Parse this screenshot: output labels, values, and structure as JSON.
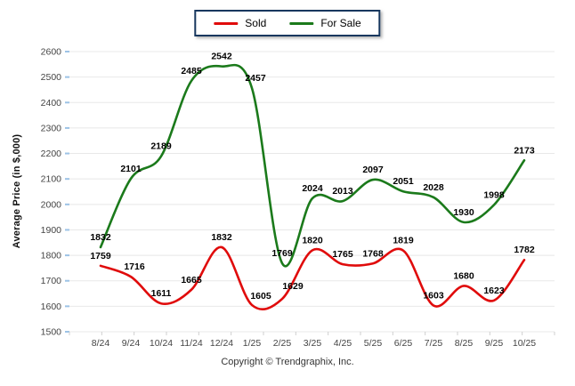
{
  "y_axis_title": "Average Price (in $,000)",
  "footer_text": "Copyright © Trendgraphix, Inc.",
  "colors": {
    "sold_line": "#e00b0b",
    "for_sale_line": "#1b7a1b",
    "legend_border": "#17375e",
    "gridline": "#e8e8e8",
    "y_tick": "#9dc3e6",
    "x_tick": "#cfcfcf",
    "axis_text": "#444444",
    "data_label_text": "#000000"
  },
  "chart_data": {
    "type": "line",
    "title": "",
    "xlabel": "",
    "ylabel": "Average Price (in $,000)",
    "categories": [
      "8/24",
      "9/24",
      "10/24",
      "11/24",
      "12/24",
      "1/25",
      "2/25",
      "3/25",
      "4/25",
      "5/25",
      "6/25",
      "7/25",
      "8/25",
      "9/25",
      "10/25"
    ],
    "series": [
      {
        "name": "Sold",
        "color": "#e00b0b",
        "values": [
          1759,
          1716,
          1611,
          1665,
          1832,
          1605,
          1629,
          1820,
          1765,
          1768,
          1819,
          1603,
          1680,
          1623,
          1782
        ]
      },
      {
        "name": "For Sale",
        "color": "#1b7a1b",
        "values": [
          1832,
          2101,
          2189,
          2485,
          2542,
          2457,
          1769,
          2024,
          2013,
          2097,
          2051,
          2028,
          1930,
          1998,
          2173
        ]
      }
    ],
    "ylim": [
      1500,
      2600
    ],
    "ytick_step": 100,
    "yticks": [
      1500,
      1600,
      1700,
      1800,
      1900,
      2000,
      2100,
      2200,
      2300,
      2400,
      2500,
      2600
    ],
    "grid": "horizontal",
    "legend_position": "top-center",
    "data_labels": true,
    "line_smoothing": true
  }
}
